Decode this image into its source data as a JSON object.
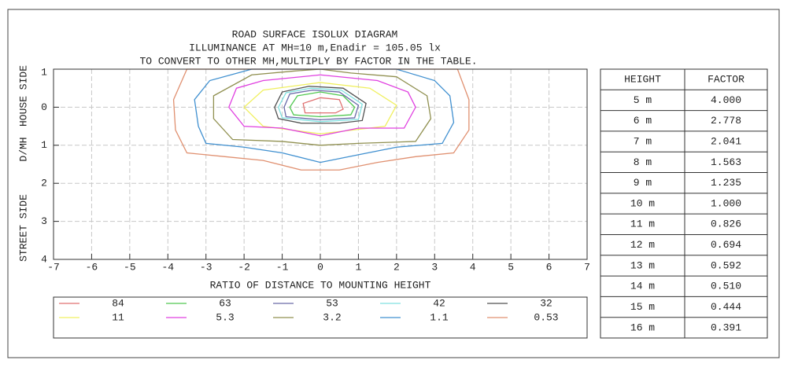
{
  "chart_data": {
    "type": "contour",
    "title": [
      "ROAD SURFACE ISOLUX DIAGRAM",
      "ILLUMINANCE AT MH=10 m,Enadir  = 105.05 lx",
      "TO CONVERT TO OTHER MH,MULTIPLY BY FACTOR IN THE TABLE."
    ],
    "ylabel": [
      "HOUSE SIDE",
      "D/MH",
      "STREET SIDE"
    ],
    "xlabel": "RATIO OF DISTANCE TO MOUNTING HEIGHT",
    "xlim": [
      -7,
      7
    ],
    "ylim": [
      -1,
      4
    ],
    "y_inverted": true,
    "grid": true,
    "xticks": [
      -7,
      -6,
      -5,
      -4,
      -3,
      -2,
      -1,
      0,
      1,
      2,
      3,
      4,
      5,
      6,
      7
    ],
    "yticks": [
      {
        "value": -1,
        "label": "1"
      },
      0,
      1,
      2,
      3,
      4
    ],
    "series": [
      {
        "name": "84",
        "color": "#e07070",
        "x": [
          -0.45,
          0,
          0.5,
          0.6,
          0.4,
          -0.4
        ],
        "y": [
          -0.1,
          -0.25,
          -0.2,
          0.05,
          0.15,
          0.15
        ]
      },
      {
        "name": "63",
        "color": "#50c850",
        "x": [
          -0.8,
          -0.6,
          0,
          0.6,
          0.9,
          0.8,
          0,
          -0.7
        ],
        "y": [
          0,
          -0.3,
          -0.4,
          -0.3,
          0,
          0.2,
          0.25,
          0.2
        ]
      },
      {
        "name": "53",
        "color": "#6a6aa8",
        "x": [
          -0.95,
          -0.8,
          -0.2,
          0.5,
          1.0,
          0.9,
          0,
          -0.9
        ],
        "y": [
          0,
          -0.35,
          -0.45,
          -0.4,
          -0.05,
          0.28,
          0.33,
          0.25
        ]
      },
      {
        "name": "42",
        "color": "#80e0e0",
        "x": [
          -1.1,
          -0.9,
          -0.25,
          0.55,
          1.1,
          1.0,
          0,
          -1.0
        ],
        "y": [
          0,
          -0.38,
          -0.5,
          -0.45,
          -0.08,
          0.32,
          0.38,
          0.28
        ]
      },
      {
        "name": "32",
        "color": "#505050",
        "x": [
          -1.2,
          -1.0,
          -0.3,
          0.6,
          1.2,
          1.1,
          0.5,
          -0.5,
          -1.1
        ],
        "y": [
          0,
          -0.4,
          -0.55,
          -0.5,
          -0.1,
          0.35,
          0.42,
          0.42,
          0.3
        ]
      },
      {
        "name": "11",
        "color": "#f0f060",
        "x": [
          -2,
          -1.5,
          0,
          1.3,
          2,
          1.7,
          0,
          -1.5
        ],
        "y": [
          0,
          -0.45,
          -0.65,
          -0.5,
          -0.05,
          0.5,
          0.7,
          0.5
        ]
      },
      {
        "name": "5.3",
        "color": "#e040e0",
        "x": [
          -2.4,
          -2.2,
          -1.5,
          0,
          1.5,
          2.3,
          2.5,
          2.2,
          1,
          0,
          -1,
          -2
        ],
        "y": [
          0,
          -0.5,
          -0.7,
          -0.85,
          -0.7,
          -0.4,
          0,
          0.55,
          0.55,
          0.75,
          0.55,
          0.5
        ]
      },
      {
        "name": "3.2",
        "color": "#909050",
        "x": [
          -2.8,
          -1.8,
          -0.7,
          0,
          0.8,
          2,
          2.8,
          2.9,
          2.5,
          1,
          0,
          -1,
          -2.3,
          -2.8
        ],
        "y": [
          -0.3,
          -0.85,
          -0.95,
          -1,
          -0.9,
          -0.8,
          -0.3,
          0.3,
          0.9,
          0.95,
          1.0,
          0.9,
          0.85,
          0.3
        ]
      },
      {
        "name": "1.1",
        "color": "#4090d0",
        "x": [
          -1.8,
          -2.9,
          -3.3,
          -3.2,
          -3,
          -2,
          -1,
          0,
          1,
          2,
          3.2,
          3.5,
          3.4,
          3,
          2
        ],
        "y": [
          -1,
          -0.7,
          -0.2,
          0.5,
          0.95,
          1.05,
          1.2,
          1.45,
          1.25,
          1.05,
          0.95,
          0.4,
          -0.3,
          -0.7,
          -1
        ]
      },
      {
        "name": "0.53",
        "color": "#e09070",
        "x": [
          -3.5,
          -3.85,
          -3.8,
          -3.5,
          -2.5,
          -1.5,
          -0.5,
          0.5,
          1.5,
          2.5,
          3.5,
          3.9,
          3.9,
          3.6
        ],
        "y": [
          -1,
          -0.2,
          0.6,
          1.2,
          1.3,
          1.4,
          1.65,
          1.65,
          1.45,
          1.3,
          1.2,
          0.6,
          -0.2,
          -1
        ]
      }
    ]
  },
  "table": {
    "header": [
      "HEIGHT",
      "FACTOR"
    ],
    "rows": [
      [
        "5 m",
        "4.000"
      ],
      [
        "6 m",
        "2.778"
      ],
      [
        "7 m",
        "2.041"
      ],
      [
        "8 m",
        "1.563"
      ],
      [
        "9 m",
        "1.235"
      ],
      [
        "10 m",
        "1.000"
      ],
      [
        "11 m",
        "0.826"
      ],
      [
        "12 m",
        "0.694"
      ],
      [
        "13 m",
        "0.592"
      ],
      [
        "14 m",
        "0.510"
      ],
      [
        "15 m",
        "0.444"
      ],
      [
        "16 m",
        "0.391"
      ]
    ]
  }
}
